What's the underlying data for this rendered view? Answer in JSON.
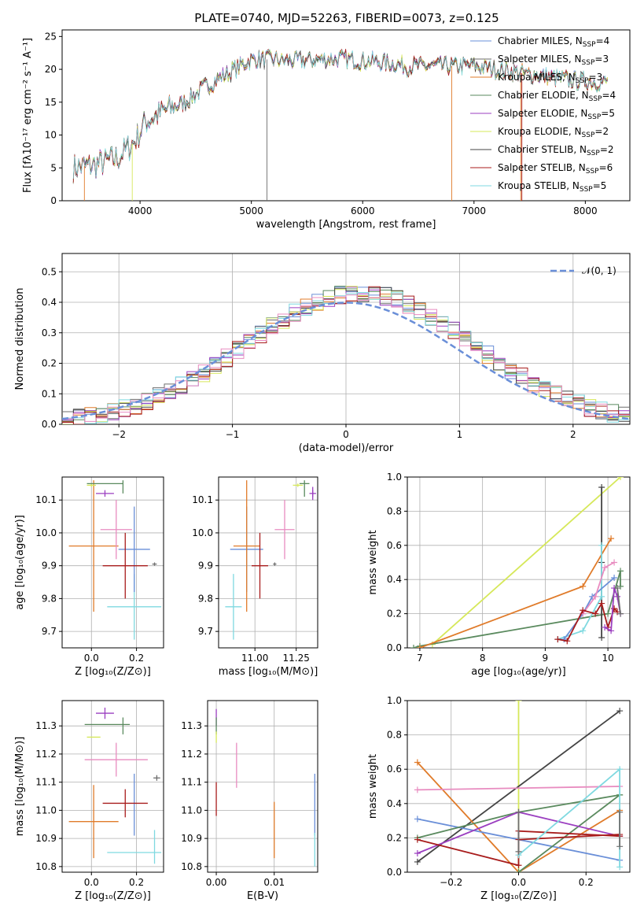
{
  "colors": {
    "Chabrier MILES": "#6a8fd8",
    "Salpeter MILES": "#6e6e6e",
    "Kroupa MILES": "#e07b2a",
    "Chabrier ELODIE": "#5a8a5e",
    "Salpeter ELODIE": "#9b3fc0",
    "Kroupa ELODIE": "#d6e85a",
    "Chabrier STELIB": "#444444",
    "Salpeter STELIB": "#a81c1c",
    "Kroupa STELIB": "#7fd9e0",
    "pink": "#e88cc0"
  },
  "chart_data": [
    {
      "id": "spectrum",
      "type": "line",
      "title": "PLATE=0740, MJD=52263, FIBERID=0073, z=0.125",
      "xlabel": "wavelength [Angstrom, rest frame]",
      "ylabel": "Flux [fλ10⁻¹⁷ erg cm⁻² s⁻¹ A⁻¹]",
      "xlim": [
        3300,
        8400
      ],
      "ylim": [
        0,
        26
      ],
      "xticks": [
        "4000",
        "5000",
        "6000",
        "7000",
        "8000"
      ],
      "yticks": [
        "0",
        "5",
        "10",
        "15",
        "20",
        "25"
      ],
      "grid": false,
      "legend": "top-right",
      "series_labels": [
        "Chabrier MILES, N_SSP=4",
        "Salpeter MILES, N_SSP=3",
        "Kroupa MILES, N_SSP=3",
        "Chabrier ELODIE, N_SSP=4",
        "Salpeter ELODIE, N_SSP=5",
        "Kroupa ELODIE, N_SSP=2",
        "Chabrier STELIB, N_SSP=2",
        "Salpeter STELIB, N_SSP=6",
        "Kroupa STELIB, N_SSP=5"
      ],
      "continuum": {
        "x": [
          3400,
          3600,
          3800,
          3950,
          4050,
          4200,
          4400,
          4600,
          4800,
          5000,
          5200,
          5400,
          5600,
          5800,
          6000,
          6200,
          6400,
          6600,
          6800,
          7000,
          7200,
          7400,
          7600,
          7800,
          8000,
          8200
        ],
        "y": [
          5,
          5.5,
          6.5,
          9,
          12,
          13.5,
          15,
          17.5,
          19.5,
          21.5,
          21.5,
          21.3,
          21.5,
          21.6,
          21.3,
          21,
          20.5,
          20.5,
          20.5,
          20.5,
          20,
          19.5,
          19,
          18.5,
          18.2,
          18
        ]
      }
    },
    {
      "id": "residuals",
      "type": "line",
      "xlabel": "(data-model)/error",
      "ylabel": "Normed distribution",
      "xlim": [
        -2.5,
        2.5
      ],
      "ylim": [
        0,
        0.56
      ],
      "xticks": [
        "−2",
        "−1",
        "0",
        "1",
        "2"
      ],
      "yticks": [
        "0.0",
        "0.1",
        "0.2",
        "0.3",
        "0.4",
        "0.5"
      ],
      "grid": true,
      "legend": "top-right",
      "reference_label": "𝒩(0, 1)",
      "reference_curve": "gaussian mean 0 sigma 1"
    },
    {
      "id": "age_vs_Z",
      "type": "scatter",
      "xlabel": "Z [log₁₀(Z/Z⊙)]",
      "ylabel": "age  [log₁₀(age/yr)]",
      "xlim": [
        -0.13,
        0.32
      ],
      "ylim": [
        9.65,
        10.17
      ],
      "xticks": [
        "0.0",
        "0.2"
      ],
      "yticks": [
        "9.7",
        "9.8",
        "9.9",
        "10.0",
        "10.1"
      ],
      "grid": true,
      "points": [
        {
          "c": "Kroupa STELIB",
          "x": 0.19,
          "xe": 0.12,
          "y": 9.775,
          "ye": 0.1
        },
        {
          "c": "Chabrier MILES",
          "x": 0.19,
          "xe": 0.0,
          "y": 9.95,
          "ye": 0.13
        },
        {
          "c": "Chabrier MILES",
          "x": 0.19,
          "xe": 0.07,
          "y": 9.95,
          "ye": 0.0
        },
        {
          "c": "Kroupa MILES",
          "x": 0.01,
          "xe": 0.11,
          "y": 9.96,
          "ye": 0.2
        },
        {
          "c": "Salpeter STELIB",
          "x": 0.15,
          "xe": 0.1,
          "y": 9.9,
          "ye": 0.1
        },
        {
          "c": "pink",
          "x": 0.11,
          "xe": 0.07,
          "y": 10.01,
          "ye": 0.09
        },
        {
          "c": "Salpeter MILES",
          "x": 0.28,
          "xe": 0.01,
          "y": 9.905,
          "ye": 0.005
        },
        {
          "c": "Kroupa ELODIE",
          "x": 0.0,
          "xe": 0.02,
          "y": 10.145,
          "ye": 0.005
        },
        {
          "c": "Chabrier ELODIE",
          "x": 0.06,
          "xe": 0.08,
          "y": 10.15,
          "ye": 0.0
        },
        {
          "c": "Chabrier ELODIE",
          "x": 0.14,
          "xe": 0.0,
          "y": 10.14,
          "ye": 0.02
        },
        {
          "c": "Salpeter ELODIE",
          "x": 0.06,
          "xe": 0.04,
          "y": 10.12,
          "ye": 0.01
        }
      ]
    },
    {
      "id": "age_vs_mass",
      "type": "scatter",
      "xlabel": "mass [log₁₀(M/M⊙)]",
      "ylabel": "",
      "xlim": [
        10.78,
        11.38
      ],
      "ylim": [
        9.65,
        10.17
      ],
      "xticks": [
        "11.00",
        "11.25"
      ],
      "yticks": [
        "9.7",
        "9.8",
        "9.9",
        "10.0",
        "10.1"
      ],
      "grid": true,
      "points": [
        {
          "c": "Kroupa STELIB",
          "x": 10.87,
          "xe": 0.05,
          "y": 9.775,
          "ye": 0.1
        },
        {
          "c": "Chabrier MILES",
          "x": 10.95,
          "xe": 0.1,
          "y": 9.95,
          "ye": 0.13
        },
        {
          "c": "Kroupa MILES",
          "x": 10.95,
          "xe": 0.08,
          "y": 9.96,
          "ye": 0.2
        },
        {
          "c": "Salpeter STELIB",
          "x": 11.03,
          "xe": 0.05,
          "y": 9.9,
          "ye": 0.1
        },
        {
          "c": "Salpeter MILES",
          "x": 11.12,
          "xe": 0.01,
          "y": 9.905,
          "ye": 0.005
        },
        {
          "c": "pink",
          "x": 11.18,
          "xe": 0.06,
          "y": 10.01,
          "ye": 0.09
        },
        {
          "c": "Kroupa ELODIE",
          "x": 11.26,
          "xe": 0.03,
          "y": 10.145,
          "ye": 0.005
        },
        {
          "c": "Chabrier ELODIE",
          "x": 11.3,
          "xe": 0.03,
          "y": 10.15,
          "ye": 0.0
        },
        {
          "c": "Chabrier ELODIE",
          "x": 11.3,
          "xe": 0.0,
          "y": 10.135,
          "ye": 0.025
        },
        {
          "c": "Salpeter ELODIE",
          "x": 11.35,
          "xe": 0.02,
          "y": 10.12,
          "ye": 0.01
        },
        {
          "c": "Salpeter ELODIE",
          "x": 11.35,
          "xe": 0.0,
          "y": 10.12,
          "ye": 0.02
        }
      ]
    },
    {
      "id": "weight_vs_age",
      "type": "line",
      "xlabel": "age  [log₁₀(age/yr)]",
      "ylabel": "mass weight",
      "xlim": [
        6.8,
        10.35
      ],
      "ylim": [
        0,
        1
      ],
      "xticks": [
        "7",
        "8",
        "9",
        "10"
      ],
      "yticks": [
        "0.0",
        "0.2",
        "0.4",
        "0.6",
        "0.8",
        "1.0"
      ],
      "grid": true,
      "series": [
        {
          "c": "Kroupa ELODIE",
          "x": [
            7.2,
            10.2
          ],
          "y": [
            0.02,
            1.0
          ]
        },
        {
          "c": "Chabrier ELODIE",
          "x": [
            6.9,
            7.0,
            10.0,
            10.2,
            10.2
          ],
          "y": [
            0.0,
            0.01,
            0.2,
            0.45,
            0.36
          ]
        },
        {
          "c": "Kroupa MILES",
          "x": [
            7.0,
            9.6,
            10.05
          ],
          "y": [
            0.0,
            0.36,
            0.64
          ]
        },
        {
          "c": "Chabrier STELIB",
          "x": [
            9.9,
            9.9,
            9.9
          ],
          "y": [
            0.06,
            0.94,
            0.5
          ]
        },
        {
          "c": "Kroupa STELIB",
          "x": [
            9.2,
            9.6,
            9.9,
            9.9
          ],
          "y": [
            0.05,
            0.1,
            0.3,
            0.6
          ]
        },
        {
          "c": "Chabrier MILES",
          "x": [
            9.3,
            9.6,
            9.75,
            10.1
          ],
          "y": [
            0.05,
            0.2,
            0.3,
            0.41
          ]
        },
        {
          "c": "pink",
          "x": [
            9.6,
            9.8,
            9.95,
            10.1
          ],
          "y": [
            0.2,
            0.3,
            0.47,
            0.5
          ]
        },
        {
          "c": "Salpeter STELIB",
          "x": [
            9.2,
            9.35,
            9.6,
            9.8,
            9.9,
            10.0,
            10.1,
            10.15
          ],
          "y": [
            0.05,
            0.04,
            0.22,
            0.2,
            0.26,
            0.12,
            0.23,
            0.21
          ]
        },
        {
          "c": "Salpeter ELODIE",
          "x": [
            9.95,
            10.05,
            10.1,
            10.15,
            10.2
          ],
          "y": [
            0.12,
            0.1,
            0.35,
            0.3,
            0.2
          ]
        },
        {
          "c": "Salpeter MILES",
          "x": [
            10.15,
            10.2
          ],
          "y": [
            0.35,
            0.2
          ]
        }
      ]
    },
    {
      "id": "mass_vs_Z",
      "type": "scatter",
      "xlabel": "Z [log₁₀(Z/Z⊙)]",
      "ylabel": "mass [log₁₀(M/M⊙)]",
      "xlim": [
        -0.13,
        0.32
      ],
      "ylim": [
        10.78,
        11.39
      ],
      "xticks": [
        "0.0",
        "0.2"
      ],
      "yticks": [
        "10.8",
        "10.9",
        "11.0",
        "11.1",
        "11.2",
        "11.3"
      ],
      "grid": true,
      "points": [
        {
          "c": "Salpeter ELODIE",
          "x": 0.06,
          "xe": 0.04,
          "y": 11.345,
          "ye": 0.02
        },
        {
          "c": "Chabrier ELODIE",
          "x": 0.07,
          "xe": 0.1,
          "y": 11.305,
          "ye": 0.0
        },
        {
          "c": "Chabrier ELODIE",
          "x": 0.14,
          "xe": 0.0,
          "y": 11.3,
          "ye": 0.03
        },
        {
          "c": "Kroupa ELODIE",
          "x": 0.01,
          "xe": 0.03,
          "y": 11.26,
          "ye": 0.0
        },
        {
          "c": "pink",
          "x": 0.11,
          "xe": 0.14,
          "y": 11.18,
          "ye": 0.06
        },
        {
          "c": "Salpeter MILES",
          "x": 0.29,
          "xe": 0.015,
          "y": 11.115,
          "ye": 0.01
        },
        {
          "c": "Chabrier MILES",
          "x": 0.19,
          "xe": 0.0,
          "y": 11.02,
          "ye": 0.11
        },
        {
          "c": "Salpeter STELIB",
          "x": 0.15,
          "xe": 0.1,
          "y": 11.025,
          "ye": 0.05
        },
        {
          "c": "Kroupa MILES",
          "x": 0.01,
          "xe": 0.11,
          "y": 10.96,
          "ye": 0.13
        },
        {
          "c": "Kroupa STELIB",
          "x": 0.19,
          "xe": 0.12,
          "y": 10.85,
          "ye": 0.0
        },
        {
          "c": "Kroupa STELIB",
          "x": 0.28,
          "xe": 0.0,
          "y": 10.87,
          "ye": 0.06
        }
      ]
    },
    {
      "id": "mass_vs_ebv",
      "type": "scatter",
      "xlabel": "E(B-V)",
      "ylabel": "",
      "xlim": [
        -0.0015,
        0.0175
      ],
      "ylim": [
        10.78,
        11.39
      ],
      "xticks": [
        "0.00",
        "0.01"
      ],
      "yticks": [
        "10.8",
        "10.9",
        "11.0",
        "11.1",
        "11.2",
        "11.3"
      ],
      "grid": true,
      "points": [
        {
          "c": "Salpeter ELODIE",
          "x": 0.0,
          "xe": 0.0,
          "y": 11.33,
          "ye": 0.03
        },
        {
          "c": "Chabrier ELODIE",
          "x": 0.0,
          "xe": 0.0,
          "y": 11.3,
          "ye": 0.03
        },
        {
          "c": "Kroupa ELODIE",
          "x": 0.0,
          "xe": 0.0,
          "y": 11.26,
          "ye": 0.02
        },
        {
          "c": "Salpeter STELIB",
          "x": 0.0,
          "xe": 0.0,
          "y": 11.04,
          "ye": 0.06
        },
        {
          "c": "pink",
          "x": 0.0035,
          "xe": 0.0,
          "y": 11.16,
          "ye": 0.08
        },
        {
          "c": "Kroupa MILES",
          "x": 0.01,
          "xe": 0.0,
          "y": 10.93,
          "ye": 0.1
        },
        {
          "c": "Chabrier MILES",
          "x": 0.017,
          "xe": 0.0,
          "y": 11.02,
          "ye": 0.11
        },
        {
          "c": "Kroupa STELIB",
          "x": 0.017,
          "xe": 0.0,
          "y": 10.86,
          "ye": 0.06
        }
      ]
    },
    {
      "id": "weight_vs_Z",
      "type": "line",
      "xlabel": "Z [log₁₀(Z/Z⊙)]",
      "ylabel": "mass weight",
      "xlim": [
        -0.33,
        0.33
      ],
      "ylim": [
        0,
        1
      ],
      "xticks": [
        "−0.2",
        "0.0",
        "0.2"
      ],
      "yticks": [
        "0.0",
        "0.2",
        "0.4",
        "0.6",
        "0.8",
        "1.0"
      ],
      "grid": true,
      "series": [
        {
          "c": "Kroupa ELODIE",
          "x": [
            0.0,
            0.0
          ],
          "y": [
            0.0,
            1.0
          ]
        },
        {
          "c": "Chabrier STELIB",
          "x": [
            -0.3,
            0.3
          ],
          "y": [
            0.06,
            0.94
          ]
        },
        {
          "c": "Kroupa MILES",
          "x": [
            -0.3,
            0.0,
            0.3
          ],
          "y": [
            0.64,
            0.0,
            0.36
          ]
        },
        {
          "c": "pink",
          "x": [
            -0.3,
            0.3
          ],
          "y": [
            0.48,
            0.5
          ]
        },
        {
          "c": "Chabrier MILES",
          "x": [
            -0.3,
            0.3
          ],
          "y": [
            0.31,
            0.07
          ]
        },
        {
          "c": "Chabrier ELODIE",
          "x": [
            -0.3,
            0.0,
            0.3
          ],
          "y": [
            0.2,
            0.35,
            0.45
          ]
        },
        {
          "c": "Chabrier ELODIE",
          "x": [
            0.0,
            0.3
          ],
          "y": [
            0.0,
            0.45
          ]
        },
        {
          "c": "Salpeter ELODIE",
          "x": [
            -0.3,
            0.0,
            0.3
          ],
          "y": [
            0.11,
            0.35,
            0.21
          ]
        },
        {
          "c": "Salpeter STELIB",
          "x": [
            -0.3,
            0.0,
            0.0,
            0.3
          ],
          "y": [
            0.19,
            0.04,
            0.24,
            0.21
          ]
        },
        {
          "c": "Salpeter STELIB",
          "x": [
            0.0,
            0.3
          ],
          "y": [
            0.19,
            0.22
          ]
        },
        {
          "c": "Kroupa STELIB",
          "x": [
            0.0,
            0.3,
            0.3
          ],
          "y": [
            0.1,
            0.6,
            0.03
          ]
        },
        {
          "c": "Salpeter MILES",
          "x": [
            0.0,
            0.0
          ],
          "y": [
            0.12,
            0.35
          ]
        },
        {
          "c": "Salpeter MILES",
          "x": [
            0.3,
            0.3
          ],
          "y": [
            0.15,
            0.35
          ]
        }
      ]
    }
  ]
}
